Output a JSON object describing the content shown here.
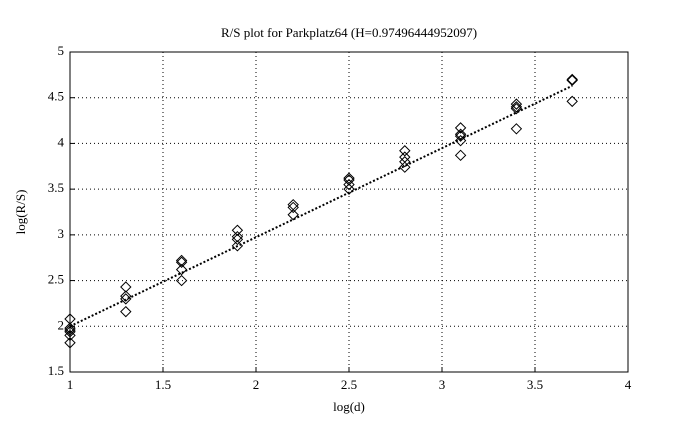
{
  "chart_data": {
    "type": "scatter",
    "title": "R/S plot for Parkplatz64 (H=0.97496444952097)",
    "xlabel": "log(d)",
    "ylabel": "log(R/S)",
    "xlim": [
      1,
      4
    ],
    "ylim": [
      1.5,
      5
    ],
    "xticks": [
      1,
      1.5,
      2,
      2.5,
      3,
      3.5,
      4
    ],
    "yticks": [
      1.5,
      2,
      2.5,
      3,
      3.5,
      4,
      4.5,
      5
    ],
    "grid": true,
    "color": "#000000",
    "x": [
      1,
      1,
      1,
      1,
      1,
      1,
      1.3,
      1.3,
      1.3,
      1.3,
      1.6,
      1.6,
      1.6,
      1.6,
      1.9,
      1.9,
      1.9,
      1.9,
      2.2,
      2.2,
      2.2,
      2.5,
      2.5,
      2.5,
      2.5,
      2.8,
      2.8,
      2.8,
      2.8,
      3.1,
      3.1,
      3.1,
      3.1,
      3.1,
      3.4,
      3.4,
      3.4,
      3.4,
      3.7,
      3.7,
      3.7
    ],
    "y": [
      2.08,
      1.98,
      1.96,
      1.94,
      1.9,
      1.82,
      2.43,
      2.33,
      2.3,
      2.16,
      2.72,
      2.7,
      2.62,
      2.5,
      3.05,
      2.98,
      2.95,
      2.88,
      3.33,
      3.3,
      3.22,
      3.62,
      3.6,
      3.55,
      3.5,
      3.92,
      3.85,
      3.8,
      3.74,
      4.17,
      4.1,
      4.08,
      4.03,
      3.87,
      4.43,
      4.4,
      4.38,
      4.16,
      4.7,
      4.69,
      4.46
    ],
    "fit": {
      "x": [
        1,
        3.7
      ],
      "y": [
        2.0,
        4.63
      ]
    }
  }
}
